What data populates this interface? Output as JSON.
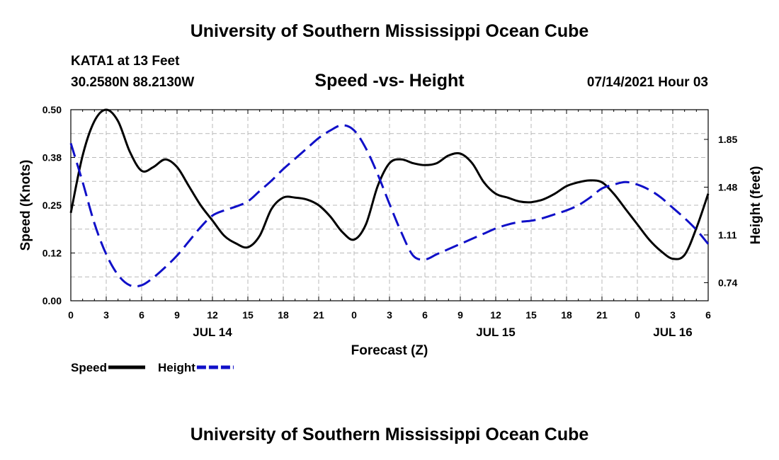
{
  "header": {
    "title": "University of Southern Mississippi Ocean Cube",
    "station": "KATA1 at 13 Feet",
    "coords": "30.2580N  88.2130W",
    "datetime": "07/14/2021 Hour 03"
  },
  "footer": {
    "title": "University of Southern Mississippi Ocean Cube"
  },
  "chart_data": {
    "type": "line",
    "title": "Speed -vs- Height",
    "xlabel": "Forecast (Z)",
    "ylabel": "Speed (Knots)",
    "ylabel_right": "Height (feet)",
    "xlim": [
      0,
      54
    ],
    "ylim": [
      0,
      0.5
    ],
    "ylim_right": [
      0.6,
      2.08
    ],
    "grid": true,
    "x_ticks": [
      0,
      3,
      6,
      9,
      12,
      15,
      18,
      21,
      24,
      27,
      30,
      33,
      36,
      39,
      42,
      45,
      48,
      51,
      54
    ],
    "x_tick_labels": [
      "0",
      "3",
      "6",
      "9",
      "12",
      "15",
      "18",
      "21",
      "0",
      "3",
      "6",
      "9",
      "12",
      "15",
      "18",
      "21",
      "0",
      "3",
      "6"
    ],
    "date_labels": [
      {
        "x": 12,
        "label": "JUL 14"
      },
      {
        "x": 36,
        "label": "JUL 15"
      },
      {
        "x": 51,
        "label": "JUL 16"
      }
    ],
    "y_ticks": [
      0.0,
      0.125,
      0.25,
      0.375,
      0.5
    ],
    "y_tick_labels": [
      "0.00",
      "0.12",
      "0.25",
      "0.38",
      "0.50"
    ],
    "y_right_ticks": [
      0.74,
      1.11,
      1.48,
      1.85
    ],
    "y_right_tick_labels": [
      "0.74",
      "1.11",
      "1.48",
      "1.85"
    ],
    "series": [
      {
        "name": "Speed",
        "axis": "left",
        "color": "#000000",
        "dash": "solid",
        "x": [
          0,
          1,
          2,
          3,
          4,
          5,
          6,
          7,
          8,
          9,
          10,
          11,
          12,
          13,
          14,
          15,
          16,
          17,
          18,
          19,
          20,
          21,
          22,
          23,
          24,
          25,
          26,
          27,
          28,
          29,
          30,
          31,
          32,
          33,
          34,
          35,
          36,
          37,
          38,
          39,
          40,
          41,
          42,
          43,
          44,
          45,
          46,
          47,
          48,
          49,
          50,
          51,
          52,
          53,
          54
        ],
        "values": [
          0.23,
          0.38,
          0.47,
          0.5,
          0.47,
          0.39,
          0.34,
          0.35,
          0.37,
          0.35,
          0.3,
          0.25,
          0.21,
          0.17,
          0.15,
          0.14,
          0.17,
          0.24,
          0.27,
          0.27,
          0.265,
          0.25,
          0.22,
          0.18,
          0.16,
          0.2,
          0.3,
          0.36,
          0.37,
          0.36,
          0.355,
          0.36,
          0.38,
          0.385,
          0.36,
          0.31,
          0.28,
          0.27,
          0.26,
          0.258,
          0.265,
          0.28,
          0.3,
          0.31,
          0.315,
          0.31,
          0.28,
          0.24,
          0.2,
          0.16,
          0.13,
          0.11,
          0.12,
          0.19,
          0.28
        ]
      },
      {
        "name": "Height",
        "axis": "right",
        "color": "#1010c8",
        "dash": "dashed",
        "x": [
          0,
          1,
          2,
          3,
          4,
          5,
          6,
          7,
          8,
          9,
          10,
          11,
          12,
          13,
          14,
          15,
          16,
          17,
          18,
          19,
          20,
          21,
          22,
          23,
          24,
          25,
          26,
          27,
          28,
          29,
          30,
          31,
          32,
          33,
          34,
          35,
          36,
          37,
          38,
          39,
          40,
          41,
          42,
          43,
          44,
          45,
          46,
          47,
          48,
          49,
          50,
          51,
          52,
          53,
          54
        ],
        "values": [
          1.82,
          1.52,
          1.2,
          0.96,
          0.8,
          0.72,
          0.72,
          0.78,
          0.86,
          0.95,
          1.06,
          1.17,
          1.26,
          1.3,
          1.33,
          1.37,
          1.45,
          1.53,
          1.62,
          1.7,
          1.78,
          1.86,
          1.92,
          1.96,
          1.92,
          1.78,
          1.58,
          1.35,
          1.13,
          0.95,
          0.92,
          0.96,
          1.0,
          1.04,
          1.08,
          1.12,
          1.16,
          1.19,
          1.21,
          1.22,
          1.24,
          1.27,
          1.3,
          1.34,
          1.4,
          1.47,
          1.5,
          1.52,
          1.5,
          1.46,
          1.4,
          1.32,
          1.24,
          1.15,
          1.04
        ]
      }
    ],
    "legend": {
      "position": "bottom-left",
      "items": [
        {
          "label": "Speed",
          "color": "#000000",
          "dash": "solid"
        },
        {
          "label": "Height",
          "color": "#1010c8",
          "dash": "dashed"
        }
      ]
    }
  }
}
